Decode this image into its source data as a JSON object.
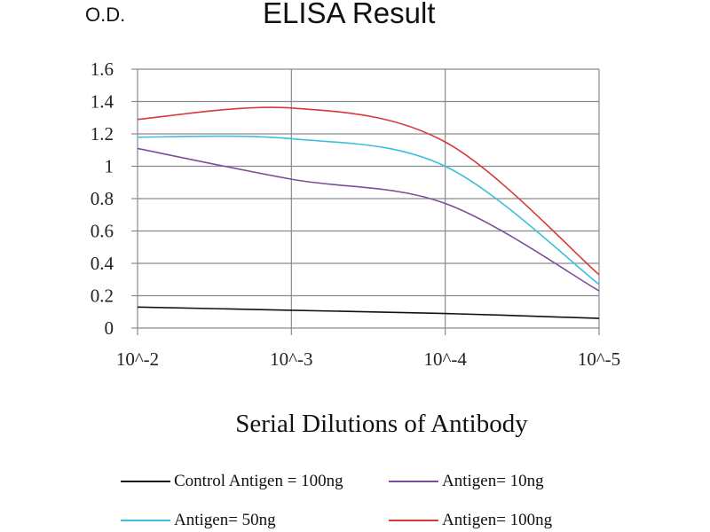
{
  "chart_data": {
    "type": "line",
    "title": "ELISA Result",
    "ylabel": "O.D.",
    "xlabel": "Serial Dilutions of Antibody",
    "categories": [
      "10^-2",
      "10^-3",
      "10^-4",
      "10^-5"
    ],
    "ylim": [
      0,
      1.6
    ],
    "yticks": [
      "0",
      "0.2",
      "0.4",
      "0.6",
      "0.8",
      "1",
      "1.2",
      "1.4",
      "1.6"
    ],
    "grid": true,
    "legend_position": "bottom",
    "series": [
      {
        "name": "Control Antigen = 100ng",
        "color": "#111111",
        "values": [
          0.13,
          0.11,
          0.09,
          0.06
        ]
      },
      {
        "name": "Antigen= 10ng",
        "color": "#7b4f9a",
        "values": [
          1.11,
          0.92,
          0.77,
          0.23
        ]
      },
      {
        "name": "Antigen= 50ng",
        "color": "#3cc0dc",
        "values": [
          1.18,
          1.17,
          1.0,
          0.27
        ]
      },
      {
        "name": "Antigen= 100ng",
        "color": "#d9383a",
        "values": [
          1.29,
          1.36,
          1.15,
          0.33
        ]
      }
    ]
  }
}
